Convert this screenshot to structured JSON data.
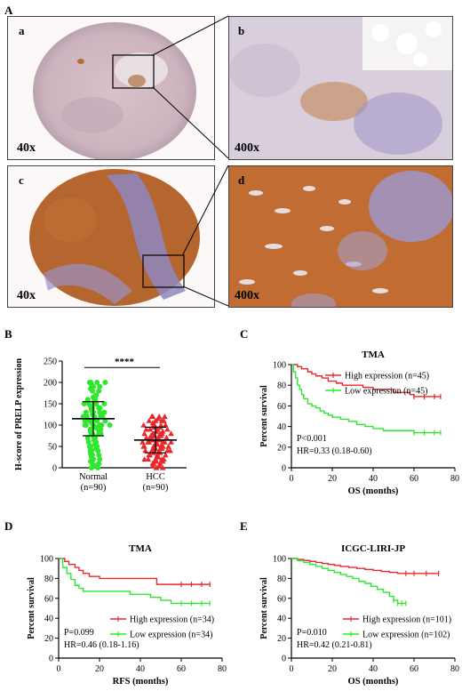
{
  "figure": {
    "panel_A": {
      "letter": "A",
      "tiles": [
        {
          "label": "a",
          "mag": "40x"
        },
        {
          "label": "b",
          "mag": "400x"
        },
        {
          "label": "c",
          "mag": "40x"
        },
        {
          "label": "d",
          "mag": "400x"
        }
      ]
    },
    "panel_B": {
      "letter": "B"
    },
    "panel_C": {
      "letter": "C"
    },
    "panel_D": {
      "letter": "D"
    },
    "panel_E": {
      "letter": "E"
    }
  },
  "colors": {
    "high": "#e8282b",
    "low": "#2ee82e",
    "he_brown": "#b5652e",
    "he_blue": "#8f87bf"
  },
  "chart_data": [
    {
      "id": "B",
      "type": "scatter",
      "title": "",
      "ylabel": "H-score of PRELP expression",
      "ylim": [
        0,
        250
      ],
      "yticks": [
        0,
        50,
        100,
        150,
        200,
        250
      ],
      "categories": [
        "Normal",
        "HCC"
      ],
      "category_sublabels": [
        "(n=90)",
        "(n=90)"
      ],
      "significance": "****",
      "series": [
        {
          "marker": "circle",
          "color": "#2ee82e",
          "mean": 115,
          "sd_low": 75,
          "sd_high": 155,
          "values": [
            200,
            200,
            200,
            200,
            195,
            190,
            190,
            185,
            180,
            180,
            170,
            170,
            165,
            160,
            160,
            160,
            155,
            150,
            150,
            150,
            150,
            145,
            140,
            140,
            140,
            135,
            130,
            130,
            130,
            125,
            120,
            120,
            120,
            120,
            115,
            110,
            110,
            110,
            110,
            105,
            100,
            100,
            100,
            100,
            100,
            95,
            90,
            90,
            90,
            85,
            80,
            80,
            80,
            80,
            75,
            70,
            70,
            70,
            65,
            60,
            60,
            60,
            55,
            50,
            50,
            50,
            45,
            40,
            40,
            40,
            35,
            30,
            30,
            30,
            25,
            20,
            20,
            15,
            10,
            10,
            5,
            0,
            0,
            130,
            140,
            120,
            110,
            100,
            90,
            150
          ]
        },
        {
          "marker": "triangle",
          "color": "#e8282b",
          "mean": 65,
          "sd_low": 35,
          "sd_high": 95,
          "values": [
            120,
            120,
            120,
            115,
            115,
            110,
            110,
            105,
            100,
            100,
            100,
            95,
            95,
            90,
            90,
            90,
            85,
            85,
            80,
            80,
            80,
            80,
            75,
            75,
            70,
            70,
            70,
            70,
            65,
            65,
            60,
            60,
            60,
            60,
            55,
            55,
            50,
            50,
            50,
            50,
            45,
            45,
            40,
            40,
            40,
            40,
            35,
            35,
            30,
            30,
            30,
            30,
            25,
            25,
            20,
            20,
            20,
            20,
            15,
            15,
            10,
            10,
            10,
            5,
            5,
            0,
            0,
            80,
            70,
            60,
            50,
            40,
            100,
            90,
            110,
            120,
            60,
            70,
            50,
            40,
            30,
            20,
            90,
            80,
            100,
            110,
            60,
            50,
            65,
            75
          ]
        }
      ]
    },
    {
      "id": "C",
      "type": "line",
      "title": "TMA",
      "xlabel": "OS (months)",
      "ylabel": "Percent survival",
      "xlim": [
        0,
        80
      ],
      "ylim": [
        0,
        100
      ],
      "xticks": [
        0,
        20,
        40,
        60,
        80
      ],
      "yticks": [
        0,
        20,
        40,
        60,
        80,
        100
      ],
      "legend_position": "top-right",
      "annotations": [
        "P<0.001",
        "HR=0.33 (0.18-0.60)"
      ],
      "series": [
        {
          "name": "High expression (n=45)",
          "color": "#e8282b",
          "x": [
            0,
            3,
            5,
            8,
            10,
            12,
            15,
            18,
            22,
            25,
            30,
            35,
            40,
            48,
            50,
            55,
            58,
            60,
            65,
            70,
            73
          ],
          "y": [
            100,
            98,
            96,
            93,
            91,
            89,
            87,
            84,
            82,
            80,
            80,
            78,
            76,
            76,
            73,
            73,
            71,
            69,
            69,
            69,
            69
          ]
        },
        {
          "name": "Low expression (n=45)",
          "color": "#2ee82e",
          "x": [
            0,
            1,
            2,
            3,
            4,
            5,
            6,
            8,
            10,
            12,
            14,
            16,
            18,
            20,
            24,
            28,
            32,
            36,
            40,
            45,
            50,
            55,
            60,
            65,
            70,
            73
          ],
          "y": [
            100,
            93,
            87,
            80,
            76,
            71,
            67,
            62,
            60,
            58,
            55,
            53,
            51,
            49,
            47,
            45,
            42,
            40,
            38,
            36,
            36,
            36,
            34,
            34,
            34,
            34
          ]
        }
      ]
    },
    {
      "id": "D",
      "type": "line",
      "title": "TMA",
      "xlabel": "RFS (months)",
      "ylabel": "Percent survival",
      "xlim": [
        0,
        80
      ],
      "ylim": [
        0,
        100
      ],
      "xticks": [
        0,
        20,
        40,
        60,
        80
      ],
      "yticks": [
        0,
        20,
        40,
        60,
        80,
        100
      ],
      "legend_position": "bottom-right",
      "annotations": [
        "P=0.099",
        "HR=0.46 (0.18-1.16)"
      ],
      "series": [
        {
          "name": "High expression (n=34)",
          "color": "#e8282b",
          "x": [
            0,
            3,
            5,
            8,
            10,
            12,
            15,
            20,
            25,
            30,
            35,
            40,
            48,
            50,
            55,
            60,
            65,
            70,
            74
          ],
          "y": [
            100,
            97,
            94,
            91,
            88,
            85,
            82,
            80,
            80,
            80,
            80,
            80,
            74,
            74,
            74,
            74,
            74,
            74,
            74
          ]
        },
        {
          "name": "Low expression (n=34)",
          "color": "#2ee82e",
          "x": [
            0,
            2,
            4,
            6,
            8,
            10,
            12,
            15,
            20,
            25,
            30,
            35,
            40,
            45,
            50,
            55,
            60,
            65,
            70,
            74
          ],
          "y": [
            100,
            91,
            85,
            79,
            73,
            70,
            67,
            67,
            67,
            67,
            67,
            64,
            64,
            61,
            58,
            55,
            55,
            55,
            55,
            55
          ]
        }
      ]
    },
    {
      "id": "E",
      "type": "line",
      "title": "ICGC-LIRI-JP",
      "xlabel": "OS (months)",
      "ylabel": "Percent survival",
      "xlim": [
        0,
        80
      ],
      "ylim": [
        0,
        100
      ],
      "xticks": [
        0,
        20,
        40,
        60,
        80
      ],
      "yticks": [
        0,
        20,
        40,
        60,
        80,
        100
      ],
      "legend_position": "bottom-right",
      "annotations": [
        "P=0.010",
        "HR=0.42 (0.21-0.81)"
      ],
      "series": [
        {
          "name": "High expression (n=101)",
          "color": "#e8282b",
          "x": [
            0,
            3,
            6,
            9,
            12,
            15,
            18,
            21,
            24,
            28,
            32,
            36,
            40,
            44,
            48,
            52,
            56,
            60,
            66,
            72
          ],
          "y": [
            100,
            99,
            98,
            97,
            96,
            95,
            94,
            93,
            92,
            91,
            90,
            89,
            88,
            87,
            86,
            85,
            85,
            85,
            85,
            85
          ]
        },
        {
          "name": "Low expression (n=102)",
          "color": "#2ee82e",
          "x": [
            0,
            3,
            6,
            9,
            12,
            15,
            18,
            21,
            24,
            27,
            30,
            33,
            36,
            39,
            42,
            45,
            48,
            50,
            52,
            54,
            56
          ],
          "y": [
            100,
            98,
            96,
            94,
            92,
            90,
            88,
            86,
            84,
            82,
            80,
            77,
            75,
            72,
            69,
            66,
            62,
            58,
            55,
            55,
            55
          ]
        }
      ]
    }
  ]
}
